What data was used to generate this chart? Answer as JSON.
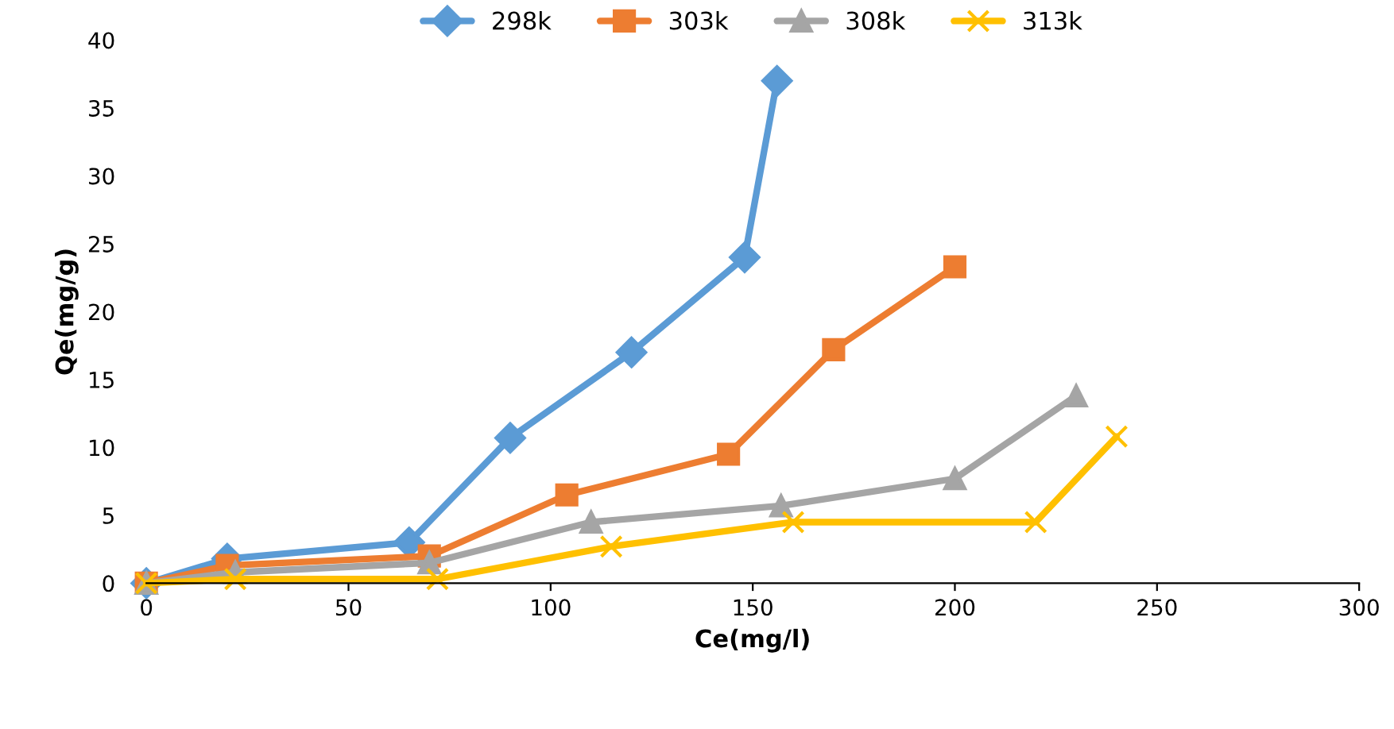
{
  "chart_data": {
    "type": "line",
    "xlabel": "Ce(mg/l)",
    "ylabel": "Qe(mg/g)",
    "xlim": [
      0,
      300
    ],
    "xticks": [
      0,
      50,
      100,
      150,
      200,
      250,
      300
    ],
    "ylim": [
      0,
      40
    ],
    "yticks": [
      0,
      5,
      10,
      15,
      20,
      25,
      30,
      35,
      40
    ],
    "grid": false,
    "legend": "top",
    "line_style": "solid",
    "series": [
      {
        "name": "298k",
        "color": "#5b9bd5",
        "marker": "diamond",
        "x": [
          0,
          20,
          65,
          90,
          120,
          148,
          156
        ],
        "values": [
          0,
          1.8,
          3,
          10.7,
          17,
          24,
          37
        ]
      },
      {
        "name": "303k",
        "color": "#ed7d31",
        "marker": "square",
        "x": [
          0,
          20,
          70,
          104,
          144,
          170,
          200
        ],
        "values": [
          0,
          1.3,
          2,
          6.5,
          9.5,
          17.2,
          23.3
        ]
      },
      {
        "name": "308k",
        "color": "#a5a5a5",
        "marker": "triangle",
        "x": [
          0,
          22,
          70,
          110,
          157,
          200,
          230
        ],
        "values": [
          0,
          0.8,
          1.5,
          4.5,
          5.7,
          7.7,
          13.8
        ]
      },
      {
        "name": "313k",
        "color": "#ffc000",
        "marker": "cross",
        "x": [
          0,
          22,
          72,
          115,
          160,
          220,
          240
        ],
        "values": [
          0,
          0.3,
          0.3,
          2.7,
          4.5,
          4.5,
          10.8
        ]
      }
    ]
  }
}
